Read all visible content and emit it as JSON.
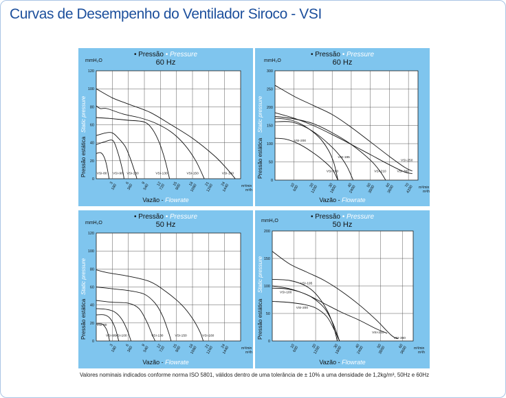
{
  "page": {
    "title": "Curvas de Desempenho do Ventilador Siroco - VSI",
    "footnote": "Valores nominais indicados conforme norma ISO 5801, válidos dentro de uma tolerância de ± 10% a uma densidade de 1,2kg/m³, 50Hz e 60Hz"
  },
  "chart_common": {
    "legend_pt": "• Pressão",
    "legend_en": "• Pressure",
    "unit": "mmH₂O",
    "ylabel_pt": "Pressão estática",
    "ylabel_en": "Static pressure",
    "xlabel_pt": "Vazão -",
    "xlabel_en": "Flowrate",
    "flow_unit_top": "m³/min",
    "flow_unit_bottom": "m³/h"
  },
  "chart_data": [
    {
      "type": "line",
      "freq": "60 Hz",
      "ylim": [
        0,
        120
      ],
      "yticks": [
        0,
        20,
        40,
        60,
        80,
        100,
        120
      ],
      "xlim": [
        0,
        27
      ],
      "xticks": [
        {
          "v": 3,
          "m": "3",
          "h": "180"
        },
        {
          "v": 6,
          "m": "6",
          "h": "360"
        },
        {
          "v": 9,
          "m": "9",
          "h": "540"
        },
        {
          "v": 12,
          "m": "12",
          "h": "720"
        },
        {
          "v": 15,
          "m": "15",
          "h": "900"
        },
        {
          "v": 18,
          "m": "18",
          "h": "1080"
        },
        {
          "v": 21,
          "m": "21",
          "h": "1260"
        },
        {
          "v": 24,
          "m": "24",
          "h": "1440"
        }
      ],
      "grid": true,
      "series": [
        {
          "name": "VSI-80",
          "points": [
            [
              0,
              28
            ],
            [
              0.8,
              29
            ],
            [
              1.4,
              25
            ],
            [
              1.9,
              16
            ],
            [
              2.4,
              0
            ]
          ],
          "label": [
            0.1,
            5
          ]
        },
        {
          "name": "VSI-90",
          "points": [
            [
              0,
              38
            ],
            [
              1.5,
              41
            ],
            [
              2.8,
              43
            ],
            [
              3.4,
              40
            ],
            [
              4.2,
              26
            ],
            [
              4.9,
              10
            ],
            [
              5.2,
              0
            ]
          ],
          "label": [
            3.1,
            5
          ]
        },
        {
          "name": "VSI-100",
          "points": [
            [
              0,
              48
            ],
            [
              1.8,
              51
            ],
            [
              3.0,
              51
            ],
            [
              4.0,
              46
            ],
            [
              5.4,
              36
            ],
            [
              6.4,
              22
            ],
            [
              7.3,
              6
            ],
            [
              7.6,
              0
            ]
          ],
          "label": [
            5.7,
            5
          ]
        },
        {
          "name": "VSI-130",
          "points": [
            [
              0,
              68
            ],
            [
              2.5,
              67
            ],
            [
              6,
              65
            ],
            [
              9,
              63
            ],
            [
              10.5,
              55
            ],
            [
              11.8,
              40
            ],
            [
              12.9,
              20
            ],
            [
              13.7,
              0
            ]
          ],
          "label": [
            11.1,
            5
          ]
        },
        {
          "name": "VSI-150",
          "points": [
            [
              0,
              81
            ],
            [
              0.8,
              78
            ],
            [
              2,
              78
            ],
            [
              5,
              72
            ],
            [
              8,
              68
            ],
            [
              11,
              62
            ],
            [
              14,
              52
            ],
            [
              16.5,
              38
            ],
            [
              18.6,
              20
            ],
            [
              20.2,
              0
            ]
          ],
          "label": [
            16.9,
            5
          ]
        },
        {
          "name": "VSI-160",
          "points": [
            [
              0,
              100
            ],
            [
              3,
              90
            ],
            [
              6,
              83
            ],
            [
              10,
              74
            ],
            [
              14,
              60
            ],
            [
              18,
              45
            ],
            [
              22,
              26
            ],
            [
              24.3,
              12
            ],
            [
              26,
              0
            ]
          ],
          "label": [
            23.5,
            5
          ]
        }
      ]
    },
    {
      "type": "line",
      "freq": "60 Hz",
      "ylim": [
        0,
        300
      ],
      "yticks": [
        0,
        50,
        100,
        150,
        200,
        250,
        300
      ],
      "xlim": [
        0,
        75
      ],
      "xticks": [
        {
          "v": 10,
          "m": "10",
          "h": "600"
        },
        {
          "v": 20,
          "m": "20",
          "h": "1200"
        },
        {
          "v": 30,
          "m": "30",
          "h": "1800"
        },
        {
          "v": 40,
          "m": "40",
          "h": "2400"
        },
        {
          "v": 50,
          "m": "50",
          "h": "3000"
        },
        {
          "v": 60,
          "m": "60",
          "h": "3600"
        },
        {
          "v": 70,
          "m": "70",
          "h": "4200"
        }
      ],
      "grid": true,
      "series": [
        {
          "name": "VSI-200",
          "points": [
            [
              0,
              115
            ],
            [
              5,
              113
            ],
            [
              10,
              105
            ],
            [
              15,
              92
            ],
            [
              20,
              75
            ],
            [
              25,
              55
            ],
            [
              30,
              30
            ],
            [
              33,
              0
            ]
          ],
          "label": [
            10,
            106
          ]
        },
        {
          "name": "VSI-195",
          "points": [
            [
              0,
              160
            ],
            [
              8,
              160
            ],
            [
              15,
              148
            ],
            [
              22,
              126
            ],
            [
              30,
              90
            ],
            [
              35,
              60
            ],
            [
              38,
              35
            ],
            [
              41,
              0
            ]
          ],
          "label": [
            33,
            60
          ]
        },
        {
          "name": "VSI-180",
          "points": [
            [
              0,
              170
            ],
            [
              8,
              165
            ],
            [
              15,
              150
            ],
            [
              23,
              118
            ],
            [
              28,
              82
            ],
            [
              31,
              45
            ],
            [
              33,
              0
            ]
          ],
          "label": [
            27,
            22
          ]
        },
        {
          "name": "VSI-210",
          "points": [
            [
              0,
              175
            ],
            [
              10,
              168
            ],
            [
              20,
              155
            ],
            [
              30,
              130
            ],
            [
              40,
              98
            ],
            [
              50,
              55
            ],
            [
              55,
              25
            ],
            [
              58,
              0
            ]
          ],
          "label": [
            52,
            22
          ]
        },
        {
          "name": "VSI-250",
          "points": [
            [
              0,
              260
            ],
            [
              10,
              230
            ],
            [
              20,
              205
            ],
            [
              30,
              180
            ],
            [
              40,
              145
            ],
            [
              50,
              105
            ],
            [
              60,
              65
            ],
            [
              68,
              35
            ],
            [
              72,
              25
            ]
          ],
          "label": [
            66,
            52
          ]
        },
        {
          "name": "VSI-360",
          "points": [
            [
              0,
              185
            ],
            [
              10,
              170
            ],
            [
              20,
              150
            ],
            [
              30,
              125
            ],
            [
              40,
              98
            ],
            [
              50,
              70
            ],
            [
              60,
              42
            ],
            [
              68,
              22
            ],
            [
              72,
              18
            ]
          ],
          "label": [
            64,
            22
          ]
        }
      ]
    },
    {
      "type": "line",
      "freq": "50 Hz",
      "ylim": [
        0,
        120
      ],
      "yticks": [
        0,
        20,
        40,
        60,
        80,
        100,
        120
      ],
      "xlim": [
        0,
        27
      ],
      "xticks": [
        {
          "v": 3,
          "m": "3",
          "h": "180"
        },
        {
          "v": 6,
          "m": "6",
          "h": "360"
        },
        {
          "v": 9,
          "m": "9",
          "h": "540"
        },
        {
          "v": 12,
          "m": "12",
          "h": "720"
        },
        {
          "v": 15,
          "m": "15",
          "h": "900"
        },
        {
          "v": 18,
          "m": "18",
          "h": "1080"
        },
        {
          "v": 21,
          "m": "21",
          "h": "1260"
        },
        {
          "v": 24,
          "m": "24",
          "h": "1440"
        }
      ],
      "grid": true,
      "series": [
        {
          "name": "VSI-80",
          "points": [
            [
              0,
              19
            ],
            [
              1,
              19
            ],
            [
              1.6,
              16
            ],
            [
              2.1,
              10
            ],
            [
              2.5,
              0
            ]
          ],
          "label": [
            0.1,
            17
          ]
        },
        {
          "name": "VSI-90",
          "points": [
            [
              0,
              29
            ],
            [
              1.5,
              29
            ],
            [
              2.6,
              25
            ],
            [
              3.5,
              15
            ],
            [
              4.2,
              0
            ]
          ],
          "label": [
            1.8,
            5
          ]
        },
        {
          "name": "VSI-100",
          "points": [
            [
              0,
              36
            ],
            [
              2,
              35
            ],
            [
              3.5,
              32
            ],
            [
              4.8,
              24
            ],
            [
              5.8,
              12
            ],
            [
              6.5,
              0
            ]
          ],
          "label": [
            3.5,
            5
          ]
        },
        {
          "name": "VSI-130",
          "points": [
            [
              0,
              45
            ],
            [
              3,
              43
            ],
            [
              6,
              42
            ],
            [
              8,
              36
            ],
            [
              9.4,
              22
            ],
            [
              10.4,
              8
            ],
            [
              11,
              0
            ]
          ],
          "label": [
            10.3,
            5
          ]
        },
        {
          "name": "VSI-150",
          "points": [
            [
              0,
              60
            ],
            [
              3,
              58
            ],
            [
              6,
              56
            ],
            [
              9,
              52
            ],
            [
              11,
              42
            ],
            [
              12.4,
              28
            ],
            [
              13.5,
              10
            ],
            [
              14,
              0
            ]
          ],
          "label": [
            14.7,
            5
          ]
        },
        {
          "name": "VSI-160",
          "points": [
            [
              0,
              79
            ],
            [
              2,
              76
            ],
            [
              6,
              72
            ],
            [
              10,
              66
            ],
            [
              13,
              55
            ],
            [
              16,
              40
            ],
            [
              18,
              25
            ],
            [
              19.4,
              10
            ],
            [
              20,
              0
            ]
          ],
          "label": [
            19.8,
            5
          ]
        }
      ]
    },
    {
      "type": "line",
      "freq": "50 Hz",
      "ylim": [
        0,
        200
      ],
      "yticks": [
        0,
        50,
        100,
        150,
        200
      ],
      "xlim": [
        0,
        65
      ],
      "xticks": [
        {
          "v": 10,
          "m": "10",
          "h": "600"
        },
        {
          "v": 20,
          "m": "20",
          "h": "1200"
        },
        {
          "v": 30,
          "m": "30",
          "h": "1800"
        },
        {
          "v": 40,
          "m": "40",
          "h": "2400"
        },
        {
          "v": 50,
          "m": "50",
          "h": "3000"
        },
        {
          "v": 60,
          "m": "60",
          "h": "3600"
        }
      ],
      "grid": true,
      "series": [
        {
          "name": "VSI-195",
          "points": [
            [
              0,
              112
            ],
            [
              8,
              110
            ],
            [
              15,
              101
            ],
            [
              20,
              86
            ],
            [
              25,
              58
            ],
            [
              28,
              30
            ],
            [
              30,
              0
            ]
          ],
          "label": [
            13,
            103
          ]
        },
        {
          "name": "VSI-180",
          "points": [
            [
              0,
              96
            ],
            [
              6,
              95
            ],
            [
              12,
              90
            ],
            [
              18,
              80
            ],
            [
              24,
              60
            ],
            [
              28,
              32
            ],
            [
              31,
              0
            ]
          ],
          "label": [
            3.5,
            87
          ]
        },
        {
          "name": "VSI-200",
          "points": [
            [
              0,
              72
            ],
            [
              8,
              70
            ],
            [
              15,
              66
            ],
            [
              20,
              60
            ],
            [
              25,
              45
            ],
            [
              28,
              25
            ],
            [
              31,
              0
            ]
          ],
          "label": [
            11,
            59
          ]
        },
        {
          "name": "VSI-210",
          "points": [
            [
              0,
              100
            ],
            [
              8,
              95
            ],
            [
              16,
              84
            ],
            [
              24,
              68
            ],
            [
              32,
              52
            ],
            [
              40,
              38
            ],
            [
              48,
              22
            ],
            [
              53,
              14
            ]
          ],
          "label": [
            46,
            14
          ]
        },
        {
          "name": "VSI-360",
          "points": [
            [
              0,
              163
            ],
            [
              8,
              140
            ],
            [
              16,
              125
            ],
            [
              24,
              110
            ],
            [
              32,
              90
            ],
            [
              40,
              66
            ],
            [
              48,
              38
            ],
            [
              55,
              10
            ],
            [
              58,
              4
            ]
          ],
          "label": [
            56,
            4
          ]
        }
      ]
    }
  ]
}
